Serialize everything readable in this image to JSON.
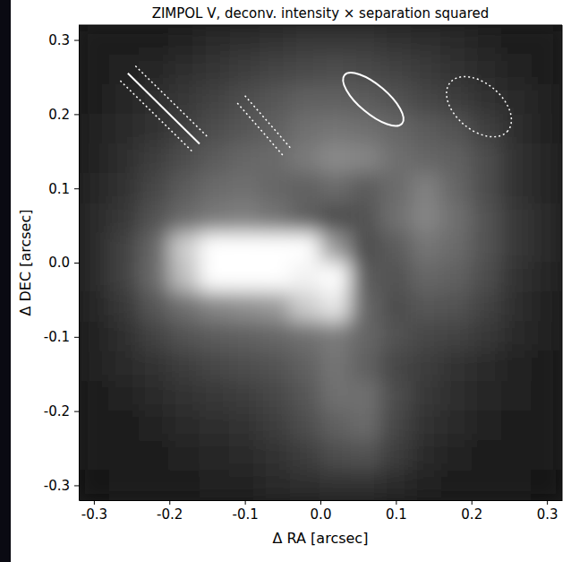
{
  "chart_data": {
    "type": "heatmap",
    "title": "ZIMPOL V, deconv. intensity × separation squared",
    "x_label": "Δ RA [arcsec]",
    "y_label": "Δ DEC [arcsec]",
    "color": "gray",
    "xlim": [
      -0.32,
      0.32
    ],
    "ylim": [
      -0.32,
      0.32
    ],
    "xticks": [
      -0.3,
      -0.2,
      -0.1,
      {
        "value": 0,
        "label": "0.0"
      },
      0.1,
      0.2,
      0.3
    ],
    "yticks": [
      -0.3,
      -0.2,
      -0.1,
      {
        "value": 0,
        "label": "0.0"
      },
      0.1,
      0.2,
      0.3
    ],
    "x": [
      -0.3,
      -0.26,
      -0.22,
      -0.18,
      -0.14,
      -0.1,
      -0.06,
      -0.02,
      0.02,
      0.06,
      0.1,
      0.14,
      0.18,
      0.22,
      0.26,
      0.3
    ],
    "y": [
      0.3,
      0.26,
      0.22,
      0.18,
      0.14,
      0.1,
      0.06,
      0.02,
      -0.02,
      -0.06,
      -0.1,
      -0.14,
      -0.18,
      -0.22,
      -0.26,
      -0.3
    ],
    "cells": [
      [
        0.1,
        0.11,
        0.12,
        0.14,
        0.16,
        0.18,
        0.2,
        0.22,
        0.22,
        0.22,
        0.2,
        0.18,
        0.16,
        0.14,
        0.12,
        0.1
      ],
      [
        0.11,
        0.13,
        0.15,
        0.18,
        0.21,
        0.24,
        0.27,
        0.29,
        0.3,
        0.29,
        0.26,
        0.23,
        0.2,
        0.17,
        0.14,
        0.12
      ],
      [
        0.12,
        0.15,
        0.18,
        0.22,
        0.26,
        0.3,
        0.34,
        0.38,
        0.38,
        0.36,
        0.32,
        0.28,
        0.24,
        0.2,
        0.16,
        0.13
      ],
      [
        0.13,
        0.16,
        0.2,
        0.25,
        0.3,
        0.34,
        0.38,
        0.44,
        0.46,
        0.44,
        0.4,
        0.36,
        0.32,
        0.25,
        0.18,
        0.14
      ],
      [
        0.14,
        0.18,
        0.24,
        0.3,
        0.36,
        0.4,
        0.42,
        0.48,
        0.54,
        0.52,
        0.44,
        0.4,
        0.38,
        0.3,
        0.2,
        0.15
      ],
      [
        0.15,
        0.2,
        0.28,
        0.36,
        0.42,
        0.44,
        0.4,
        0.38,
        0.42,
        0.36,
        0.42,
        0.5,
        0.4,
        0.3,
        0.2,
        0.15
      ],
      [
        0.16,
        0.22,
        0.32,
        0.42,
        0.48,
        0.5,
        0.46,
        0.38,
        0.3,
        0.32,
        0.44,
        0.52,
        0.44,
        0.32,
        0.22,
        0.16
      ],
      [
        0.17,
        0.26,
        0.4,
        0.8,
        1.0,
        1.0,
        1.0,
        1.0,
        0.6,
        0.3,
        0.36,
        0.46,
        0.42,
        0.32,
        0.22,
        0.16
      ],
      [
        0.16,
        0.26,
        0.42,
        0.75,
        1.0,
        1.0,
        1.0,
        0.95,
        1.0,
        0.36,
        0.32,
        0.4,
        0.38,
        0.3,
        0.2,
        0.15
      ],
      [
        0.15,
        0.22,
        0.34,
        0.44,
        0.52,
        0.56,
        0.6,
        0.8,
        0.9,
        0.4,
        0.3,
        0.34,
        0.32,
        0.26,
        0.18,
        0.14
      ],
      [
        0.14,
        0.18,
        0.26,
        0.32,
        0.36,
        0.38,
        0.4,
        0.44,
        0.48,
        0.4,
        0.32,
        0.28,
        0.26,
        0.22,
        0.16,
        0.13
      ],
      [
        0.13,
        0.16,
        0.2,
        0.24,
        0.28,
        0.3,
        0.32,
        0.38,
        0.46,
        0.38,
        0.28,
        0.24,
        0.2,
        0.17,
        0.14,
        0.12
      ],
      [
        0.12,
        0.14,
        0.17,
        0.2,
        0.22,
        0.24,
        0.28,
        0.34,
        0.44,
        0.44,
        0.3,
        0.22,
        0.18,
        0.15,
        0.13,
        0.11
      ],
      [
        0.11,
        0.12,
        0.14,
        0.16,
        0.18,
        0.2,
        0.24,
        0.3,
        0.38,
        0.42,
        0.28,
        0.2,
        0.16,
        0.13,
        0.12,
        0.1
      ],
      [
        0.1,
        0.11,
        0.12,
        0.14,
        0.15,
        0.17,
        0.2,
        0.24,
        0.3,
        0.32,
        0.24,
        0.17,
        0.14,
        0.12,
        0.11,
        0.1
      ],
      [
        0.09,
        0.1,
        0.11,
        0.12,
        0.13,
        0.14,
        0.16,
        0.18,
        0.2,
        0.2,
        0.17,
        0.14,
        0.12,
        0.11,
        0.1,
        0.09
      ]
    ]
  }
}
